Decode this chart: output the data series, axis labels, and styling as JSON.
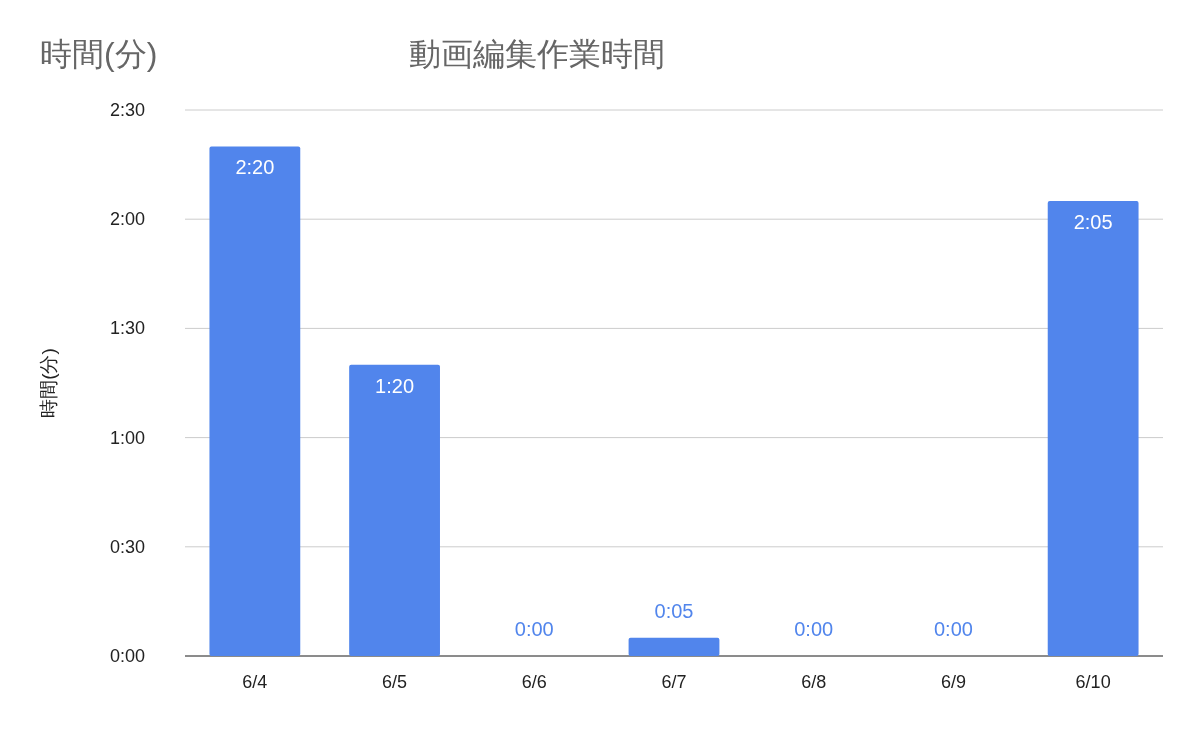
{
  "chart_data": {
    "type": "bar",
    "title": "動画編集作業時間",
    "ylabel": "時間(分)",
    "annotations": [
      "時間(分)"
    ],
    "categories": [
      "6/4",
      "6/5",
      "6/6",
      "6/7",
      "6/8",
      "6/9",
      "6/10"
    ],
    "values": [
      140,
      80,
      0,
      5,
      0,
      0,
      125
    ],
    "value_labels": [
      "2:20",
      "1:20",
      "0:00",
      "0:05",
      "0:00",
      "0:00",
      "2:05"
    ],
    "color": "#5185ec",
    "ylim": [
      0,
      150
    ],
    "yticks": [
      {
        "value": 0,
        "label": "0:00"
      },
      {
        "value": 30,
        "label": "0:30"
      },
      {
        "value": 60,
        "label": "1:00"
      },
      {
        "value": 90,
        "label": "1:30"
      },
      {
        "value": 120,
        "label": "2:00"
      },
      {
        "value": 150,
        "label": "2:30"
      }
    ],
    "grid": "y"
  }
}
